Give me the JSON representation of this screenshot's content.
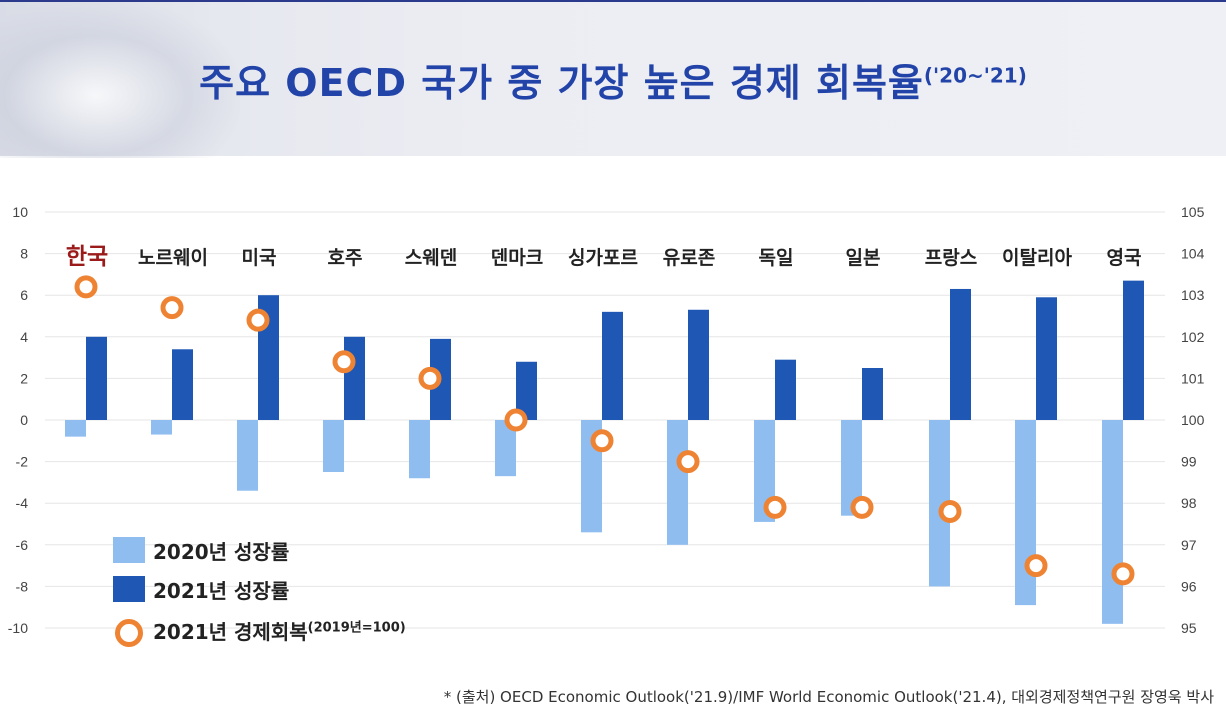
{
  "title": {
    "main": "주요 OECD 국가 중 가장 높은 경제 회복율",
    "sub": "('20~'21)"
  },
  "source": "* (출처) OECD Economic Outlook('21.9)/IMF World Economic Outlook('21.4), 대외경제정책연구원 장영욱 박사",
  "colors": {
    "growth2020": "#8fbdf0",
    "growth2021": "#1f57b5",
    "recovery": "#ee8433",
    "highlight": "#9b1b1b",
    "title": "#2243a8"
  },
  "legend": {
    "growth2020": "2020년 성장률",
    "growth2021": "2021년 성장률",
    "recovery": "2021년 경제회복",
    "recovery_note": "(2019년=100)"
  },
  "chart_data": {
    "type": "bar",
    "categories": [
      "한국",
      "노르웨이",
      "미국",
      "호주",
      "스웨덴",
      "덴마크",
      "싱가포르",
      "유로존",
      "독일",
      "일본",
      "프랑스",
      "이탈리아",
      "영국"
    ],
    "series": [
      {
        "name": "2020년 성장률",
        "axis": "left",
        "values": [
          -0.8,
          -0.7,
          -3.4,
          -2.5,
          -2.8,
          -2.7,
          -5.4,
          -6.0,
          -4.9,
          -4.6,
          -8.0,
          -8.9,
          -9.8
        ]
      },
      {
        "name": "2021년 성장률",
        "axis": "left",
        "values": [
          4.0,
          3.4,
          6.0,
          4.0,
          3.9,
          2.8,
          5.2,
          5.3,
          2.9,
          2.5,
          6.3,
          5.9,
          6.7
        ]
      },
      {
        "name": "2021년 경제회복",
        "axis": "right",
        "kind": "marker",
        "values": [
          103.2,
          102.7,
          102.4,
          101.4,
          101.0,
          100.0,
          99.5,
          99.0,
          97.9,
          97.9,
          97.8,
          96.5,
          96.3
        ]
      }
    ],
    "left_axis": {
      "min": -10,
      "max": 10,
      "ticks": [
        "10",
        "8",
        "6",
        "4",
        "2",
        "0",
        "-2",
        "-4",
        "-6",
        "-8",
        "-10"
      ]
    },
    "right_axis": {
      "min": 95,
      "max": 105,
      "ticks": [
        "105",
        "104",
        "103",
        "102",
        "101",
        "100",
        "99",
        "98",
        "97",
        "96",
        "95"
      ]
    },
    "highlight_category": "한국",
    "grid": true,
    "legend_position": "bottom-left"
  }
}
